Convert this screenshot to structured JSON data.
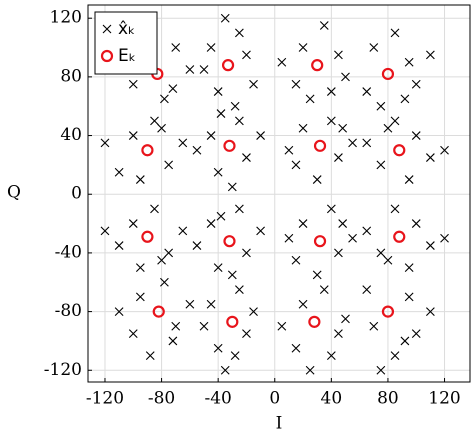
{
  "chart_data": {
    "type": "scatter",
    "xlabel": "I",
    "ylabel": "Q",
    "xlim": [
      -132,
      138
    ],
    "ylim": [
      -128,
      129
    ],
    "xticks": [
      -120,
      -80,
      -40,
      0,
      40,
      80,
      120
    ],
    "yticks": [
      -120,
      -80,
      -40,
      0,
      40,
      80,
      120
    ],
    "grid": true,
    "legend": "upper left",
    "series": [
      {
        "name": "x̂ₖ",
        "color": "#000000",
        "marker": "x",
        "x": [
          -95,
          -70,
          -100,
          -78,
          -60,
          -88,
          -110,
          -72,
          -45,
          -20,
          -40,
          -25,
          -50,
          -15,
          -35,
          -28,
          20,
          45,
          15,
          35,
          50,
          25,
          5,
          40,
          95,
          70,
          100,
          65,
          85,
          110,
          75,
          92,
          -100,
          -75,
          -110,
          -85,
          -65,
          -95,
          -120,
          -80,
          -45,
          -20,
          -40,
          -25,
          -55,
          -10,
          -30,
          -38,
          20,
          45,
          15,
          40,
          55,
          10,
          30,
          48,
          100,
          75,
          110,
          85,
          65,
          95,
          120,
          80,
          -100,
          -75,
          -110,
          -85,
          -65,
          -95,
          -120,
          -80,
          -45,
          -20,
          -40,
          -25,
          -55,
          -10,
          -30,
          -38,
          20,
          45,
          15,
          40,
          55,
          10,
          30,
          48,
          100,
          75,
          110,
          85,
          65,
          95,
          120,
          80,
          -95,
          -70,
          -100,
          -78,
          -60,
          -88,
          -110,
          -72,
          -45,
          -20,
          -40,
          -25,
          -50,
          -15,
          -35,
          -28,
          20,
          45,
          15,
          35,
          50,
          5,
          25,
          40,
          95,
          70,
          100,
          65,
          85,
          110,
          75,
          92
        ],
        "y": [
          90,
          100,
          75,
          65,
          85,
          110,
          95,
          72,
          100,
          95,
          70,
          110,
          85,
          75,
          120,
          60,
          100,
          95,
          75,
          115,
          80,
          65,
          90,
          70,
          90,
          100,
          75,
          70,
          110,
          95,
          60,
          65,
          40,
          20,
          15,
          50,
          35,
          10,
          35,
          45,
          40,
          25,
          15,
          50,
          30,
          40,
          5,
          55,
          45,
          25,
          20,
          50,
          35,
          30,
          10,
          45,
          40,
          20,
          25,
          50,
          35,
          10,
          30,
          45,
          -20,
          -40,
          -35,
          -10,
          -25,
          -50,
          -25,
          -45,
          -20,
          -40,
          -50,
          -10,
          -35,
          -25,
          -55,
          -15,
          -20,
          -40,
          -45,
          -10,
          -30,
          -30,
          -55,
          -20,
          -20,
          -40,
          -35,
          -10,
          -25,
          -50,
          -30,
          -45,
          -70,
          -90,
          -95,
          -60,
          -75,
          -110,
          -80,
          -100,
          -75,
          -95,
          -105,
          -65,
          -90,
          -80,
          -120,
          -110,
          -75,
          -95,
          -105,
          -65,
          -85,
          -90,
          -120,
          -110,
          -70,
          -90,
          -95,
          -65,
          -110,
          -80,
          -120,
          -100
        ]
      },
      {
        "name": "Eₖ",
        "color": "#e8141b",
        "marker": "o",
        "x": [
          -83,
          -33,
          30,
          80,
          -90,
          -32,
          32,
          88,
          -90,
          -32,
          32,
          88,
          -82,
          -30,
          28,
          80
        ],
        "y": [
          82,
          88,
          88,
          82,
          30,
          33,
          33,
          30,
          -29,
          -32,
          -32,
          -29,
          -80,
          -87,
          -87,
          -80
        ]
      }
    ]
  }
}
